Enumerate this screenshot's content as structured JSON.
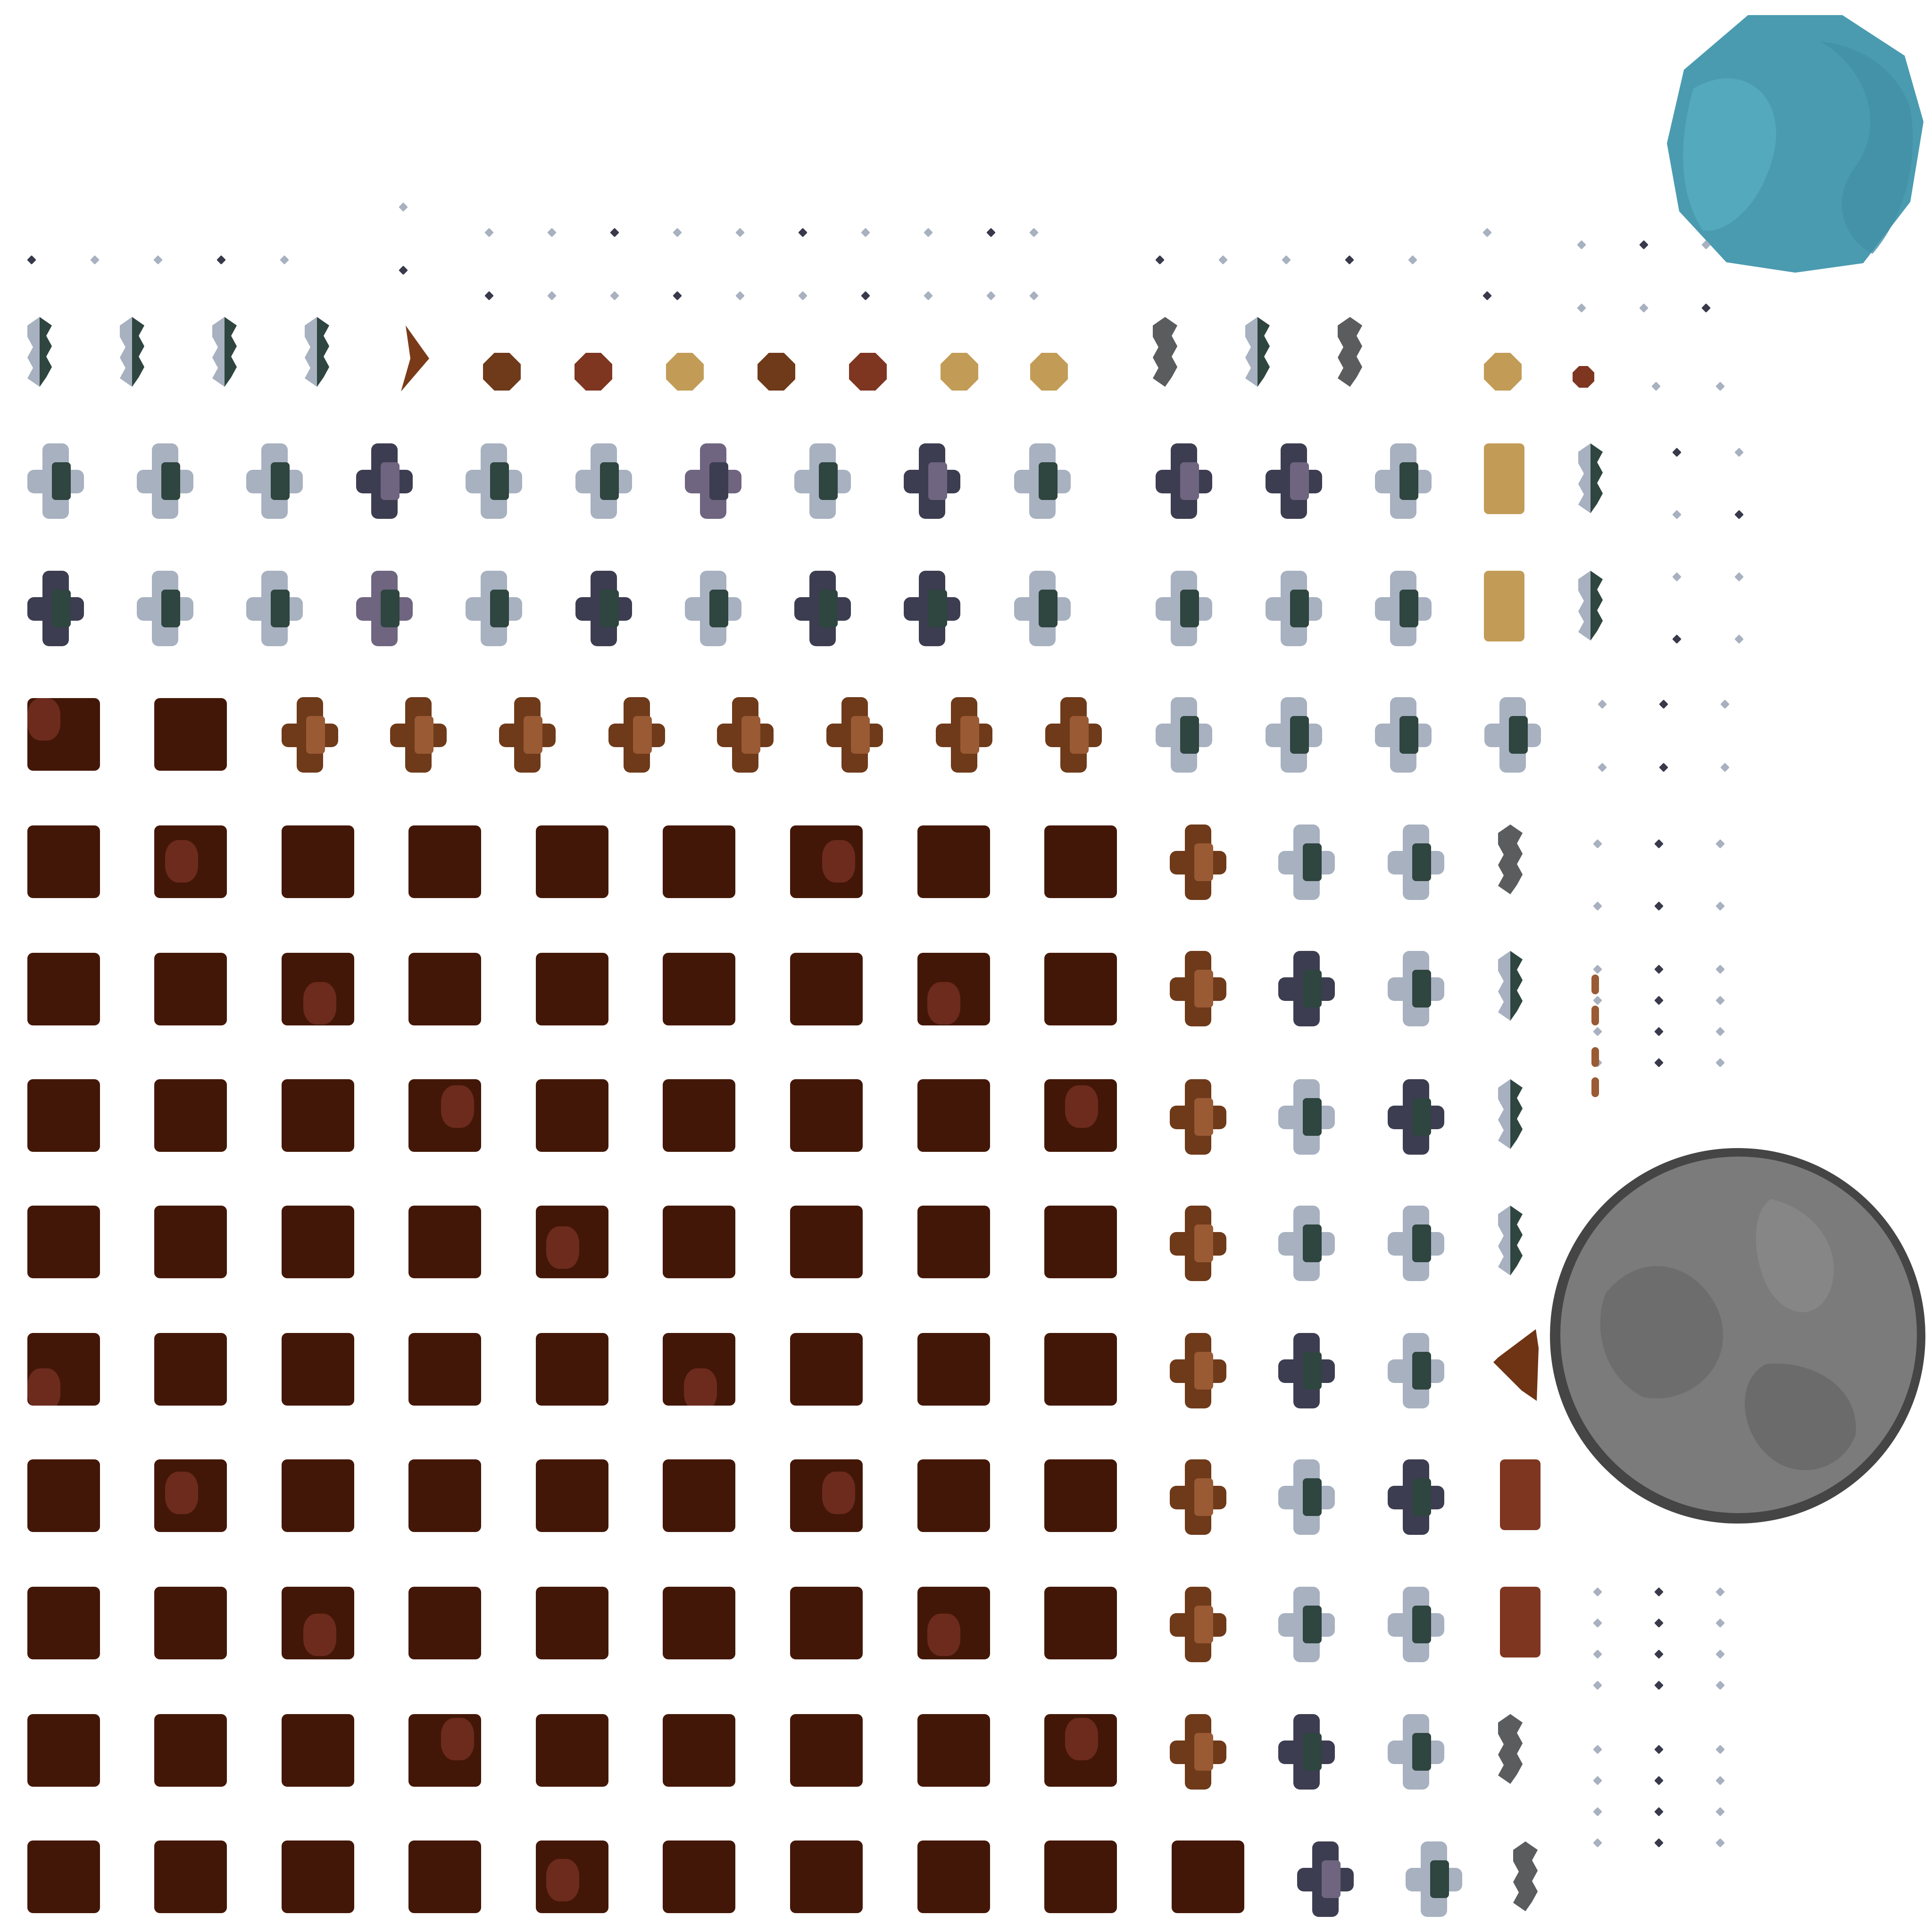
{
  "palette": {
    "crate": "#431707",
    "crate_stain": "#7a3326",
    "copper": "#6e3a1a",
    "copper_light": "#9a5a34",
    "slate_light": "#a8b1c0",
    "slate_dark": "#2f4540",
    "violet": "#6f6580",
    "navy": "#3c3d50",
    "iron": "#5b5c5e",
    "gold": "#c29c57",
    "rust": "#7e3620",
    "ocean": "#4a9bb0",
    "stone": "#787878",
    "dot_light": "#a8b1c0",
    "dot_dark": "#38394a"
  },
  "sprites": {
    "planet_ocean": "planet-ocean-icon",
    "planet_stone": "planet-stone-icon",
    "crate": "ore-crate-icon",
    "cross": "plus-block-icon",
    "gem": "crystal-column-icon",
    "coin": "octagon-coin-icon",
    "bar": "gold-bar-icon",
    "dot": "debris-dot-icon",
    "shard": "shard-icon"
  }
}
